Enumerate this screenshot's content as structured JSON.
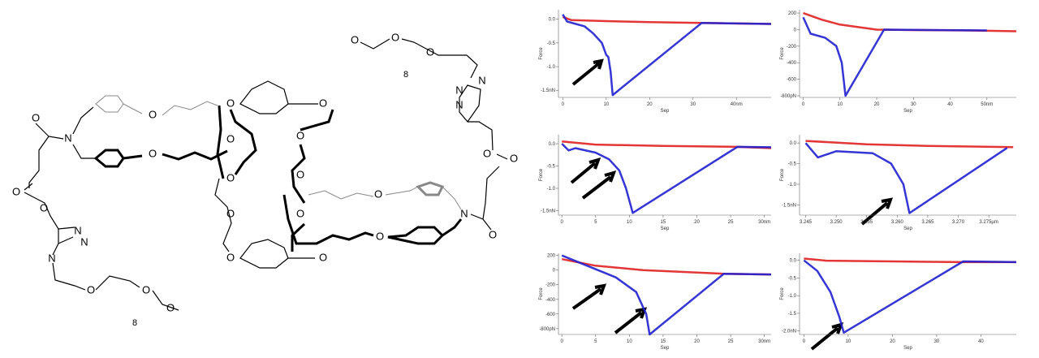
{
  "structure": {
    "labels": [
      "O",
      "N",
      "O",
      "O",
      "N",
      "N",
      "N",
      "O",
      "O",
      "8",
      "O",
      "O",
      "O",
      "O",
      "8",
      "N",
      "N",
      "N",
      "O",
      "O",
      "N",
      "O",
      "O",
      "O",
      "O",
      "O",
      "O",
      "O",
      "O",
      "O",
      "O",
      "O",
      "O",
      "O",
      "O",
      "O"
    ]
  },
  "chart_data": [
    {
      "type": "line",
      "xlabel": "Sep",
      "ylabel": "Force",
      "xlim": [
        -1,
        48
      ],
      "xticks": [
        0,
        10,
        20,
        30,
        {
          "value": 40,
          "label": "40nm"
        }
      ],
      "ylim": [
        -1.65,
        0.2
      ],
      "yticks": [
        {
          "value": 0,
          "label": "0.0"
        },
        -0.5,
        {
          "value": -1,
          "label": "-1.0"
        },
        {
          "value": -1.5,
          "label": "-1.5nN"
        }
      ],
      "series": [
        {
          "color": "#e02020",
          "x": [
            0,
            2,
            10,
            20,
            32,
            48
          ],
          "values": [
            0.05,
            -0.02,
            -0.04,
            -0.06,
            -0.08,
            -0.1
          ]
        },
        {
          "color": "#2020d0",
          "x": [
            0,
            1,
            3,
            5,
            7,
            9,
            10,
            10.5,
            11,
            11.5,
            32,
            40,
            48
          ],
          "values": [
            0.1,
            -0.05,
            -0.1,
            -0.15,
            -0.3,
            -0.5,
            -0.75,
            -0.8,
            -1.1,
            -1.6,
            -0.08,
            -0.09,
            -0.1
          ]
        }
      ]
    },
    {
      "type": "line",
      "xlabel": "Sep",
      "ylabel": "Force",
      "xlim": [
        -1,
        58
      ],
      "xticks": [
        0,
        10,
        20,
        30,
        40,
        {
          "value": 50,
          "label": "50nm"
        }
      ],
      "ylim": [
        -820,
        240
      ],
      "yticks": [
        200,
        0,
        -200,
        -400,
        -600,
        {
          "value": -800,
          "label": "-800pN"
        }
      ],
      "series": [
        {
          "color": "#e02020",
          "x": [
            0,
            5,
            10,
            20,
            30,
            45,
            58
          ],
          "values": [
            200,
            120,
            60,
            0,
            -5,
            -10,
            -20
          ]
        },
        {
          "color": "#2020d0",
          "x": [
            0,
            2,
            6,
            9,
            10.5,
            11.5,
            22,
            35,
            50
          ],
          "values": [
            150,
            -50,
            -100,
            -200,
            -400,
            -800,
            0,
            -5,
            -10
          ]
        }
      ]
    },
    {
      "type": "line",
      "xlabel": "Sep",
      "ylabel": "Force",
      "xlim": [
        -0.5,
        31
      ],
      "xticks": [
        0,
        5,
        10,
        15,
        20,
        25,
        {
          "value": 30,
          "label": "30nm"
        }
      ],
      "ylim": [
        -1.6,
        0.2
      ],
      "yticks": [
        {
          "value": 0,
          "label": "0.0"
        },
        -0.5,
        {
          "value": -1,
          "label": "-1.0"
        },
        {
          "value": -1.5,
          "label": "-1.5nN"
        }
      ],
      "series": [
        {
          "color": "#e02020",
          "x": [
            0,
            5,
            15,
            26,
            31
          ],
          "values": [
            0.05,
            -0.02,
            -0.05,
            -0.07,
            -0.1
          ]
        },
        {
          "color": "#2020d0",
          "x": [
            0,
            1,
            2,
            5,
            7,
            8.5,
            9.5,
            10.5,
            26,
            31
          ],
          "values": [
            0,
            -0.15,
            -0.1,
            -0.2,
            -0.35,
            -0.6,
            -1.0,
            -1.55,
            -0.07,
            -0.08
          ]
        }
      ]
    },
    {
      "type": "line",
      "xlabel": "Sep",
      "ylabel": "Force",
      "xlim": [
        3.244,
        3.2795
      ],
      "xticks": [
        3.245,
        {
          "value": 3.25,
          "label": "3.250"
        },
        3.255,
        {
          "value": 3.26,
          "label": "3.260"
        },
        3.265,
        {
          "value": 3.27,
          "label": "3.270"
        },
        {
          "value": 3.275,
          "label": "3.275µm"
        }
      ],
      "ylim": [
        -1.75,
        0.2
      ],
      "yticks": [
        {
          "value": 0,
          "label": "0.0"
        },
        -0.5,
        {
          "value": -1,
          "label": "-1.0"
        },
        {
          "value": -1.5,
          "label": "-1.5nN"
        }
      ],
      "series": [
        {
          "color": "#e02020",
          "x": [
            3.245,
            3.255,
            3.265,
            3.279
          ],
          "values": [
            0.05,
            -0.03,
            -0.07,
            -0.1
          ]
        },
        {
          "color": "#2020d0",
          "x": [
            3.245,
            3.247,
            3.25,
            3.256,
            3.259,
            3.261,
            3.262,
            3.278
          ],
          "values": [
            0,
            -0.35,
            -0.2,
            -0.25,
            -0.5,
            -1.0,
            -1.7,
            -0.12
          ]
        }
      ]
    },
    {
      "type": "line",
      "xlabel": "Sep",
      "ylabel": "Force",
      "xlim": [
        -0.5,
        31
      ],
      "xticks": [
        0,
        5,
        10,
        15,
        20,
        25,
        {
          "value": 30,
          "label": "30nm"
        }
      ],
      "ylim": [
        -880,
        230
      ],
      "yticks": [
        200,
        0,
        -200,
        -400,
        -600,
        {
          "value": -800,
          "label": "-800pN"
        }
      ],
      "series": [
        {
          "color": "#e02020",
          "x": [
            0,
            5,
            12,
            24,
            31
          ],
          "values": [
            150,
            60,
            0,
            -50,
            -60
          ]
        },
        {
          "color": "#2020d0",
          "x": [
            0,
            4,
            8,
            11,
            12.5,
            13,
            24,
            31
          ],
          "values": [
            200,
            50,
            -100,
            -300,
            -600,
            -880,
            -50,
            -60
          ]
        }
      ]
    },
    {
      "type": "line",
      "xlabel": "Sep",
      "ylabel": "Force",
      "xlim": [
        -1,
        48
      ],
      "xticks": [
        0,
        10,
        20,
        30,
        40
      ],
      "ylim": [
        -2.1,
        0.2
      ],
      "yticks": [
        {
          "value": 0,
          "label": "0.0"
        },
        -0.5,
        {
          "value": -1,
          "label": "-1.0"
        },
        -1.5,
        {
          "value": -2,
          "label": "-2.0nN"
        }
      ],
      "series": [
        {
          "color": "#e02020",
          "x": [
            0,
            5,
            20,
            36,
            48
          ],
          "values": [
            0.05,
            -0.01,
            -0.03,
            -0.05,
            -0.05
          ]
        },
        {
          "color": "#2020d0",
          "x": [
            0,
            3,
            6,
            8,
            9,
            36,
            48
          ],
          "values": [
            0,
            -0.3,
            -0.9,
            -1.6,
            -2.05,
            -0.03,
            -0.05
          ]
        }
      ]
    }
  ]
}
